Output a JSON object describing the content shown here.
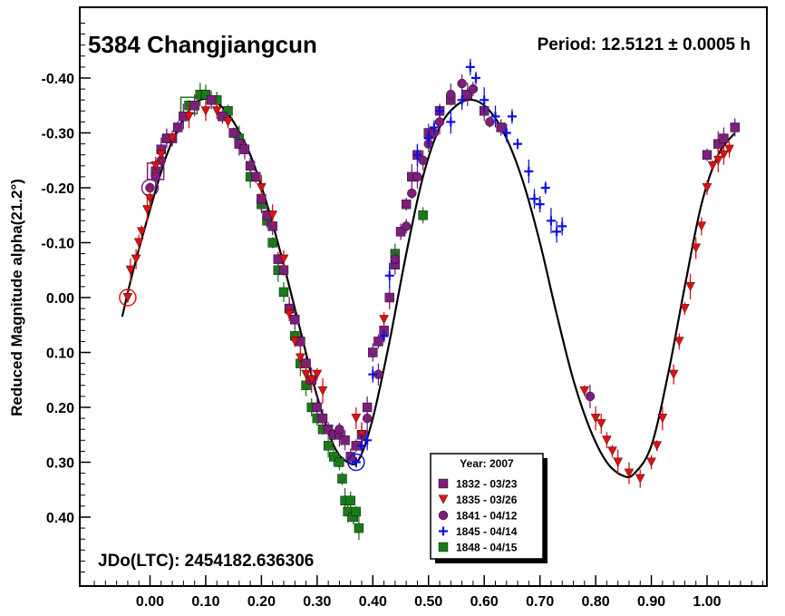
{
  "chart_data": {
    "type": "scatter",
    "title": "5384 Changjiangcun",
    "period_label": "Period: 12.5121 ± 0.0005 h",
    "epoch_label": "JDo(LTC): 2454182.636306",
    "ylabel": "Reduced Magnitude alpha(21.2°)",
    "xlabel": "",
    "xlim": [
      -0.12,
      1.1
    ],
    "ylim": [
      0.52,
      -0.51
    ],
    "y_inverted": true,
    "x_ticks": [
      0.0,
      0.1,
      0.2,
      0.3,
      0.4,
      0.5,
      0.6,
      0.7,
      0.8,
      0.9,
      1.0
    ],
    "x_tick_labels": [
      "0.00",
      "0.10",
      "0.20",
      "0.30",
      "0.40",
      "0.50",
      "0.60",
      "0.70",
      "0.80",
      "0.90",
      "1.00"
    ],
    "y_ticks": [
      -0.4,
      -0.3,
      -0.2,
      -0.1,
      0.0,
      0.1,
      0.2,
      0.3,
      0.4
    ],
    "y_tick_labels": [
      "-0.40",
      "-0.30",
      "-0.20",
      "-0.10",
      "0.00",
      "0.10",
      "0.20",
      "0.30",
      "0.40"
    ],
    "grid": false,
    "legend": {
      "title": "Year: 2007",
      "placement": "bottom-center",
      "entries": [
        {
          "name": "1832 - 03/23",
          "color": "#7b1f7b",
          "marker": "square"
        },
        {
          "name": "1835 - 03/26",
          "color": "#e01010",
          "marker": "triangle-down"
        },
        {
          "name": "1841 - 04/12",
          "color": "#7b1f7b",
          "marker": "circle"
        },
        {
          "name": "1845 - 04/14",
          "color": "#1010e0",
          "marker": "plus"
        },
        {
          "name": "1848 - 04/15",
          "color": "#1a7a1a",
          "marker": "square"
        }
      ]
    },
    "fit_curve": {
      "color": "#000000",
      "points": [
        [
          -0.05,
          0.035
        ],
        [
          -0.03,
          -0.05
        ],
        [
          0.0,
          -0.16
        ],
        [
          0.03,
          -0.26
        ],
        [
          0.06,
          -0.325
        ],
        [
          0.09,
          -0.36
        ],
        [
          0.12,
          -0.355
        ],
        [
          0.15,
          -0.32
        ],
        [
          0.18,
          -0.26
        ],
        [
          0.21,
          -0.17
        ],
        [
          0.24,
          -0.06
        ],
        [
          0.27,
          0.06
        ],
        [
          0.3,
          0.18
        ],
        [
          0.33,
          0.27
        ],
        [
          0.355,
          0.3
        ],
        [
          0.375,
          0.295
        ],
        [
          0.4,
          0.22
        ],
        [
          0.43,
          0.08
        ],
        [
          0.46,
          -0.08
        ],
        [
          0.49,
          -0.22
        ],
        [
          0.52,
          -0.31
        ],
        [
          0.55,
          -0.35
        ],
        [
          0.58,
          -0.36
        ],
        [
          0.61,
          -0.34
        ],
        [
          0.64,
          -0.29
        ],
        [
          0.67,
          -0.21
        ],
        [
          0.7,
          -0.1
        ],
        [
          0.73,
          0.03
        ],
        [
          0.76,
          0.15
        ],
        [
          0.79,
          0.24
        ],
        [
          0.82,
          0.3
        ],
        [
          0.85,
          0.325
        ],
        [
          0.87,
          0.32
        ],
        [
          0.9,
          0.27
        ],
        [
          0.93,
          0.14
        ],
        [
          0.96,
          -0.02
        ],
        [
          0.99,
          -0.17
        ],
        [
          1.02,
          -0.26
        ],
        [
          1.05,
          -0.3
        ]
      ]
    },
    "series": [
      {
        "name": "1832 - 03/23",
        "points": [
          [
            0.01,
            -0.23
          ],
          [
            0.02,
            -0.27
          ],
          [
            0.03,
            -0.29
          ],
          [
            0.04,
            -0.29
          ],
          [
            0.05,
            -0.31
          ],
          [
            0.06,
            -0.33
          ],
          [
            0.08,
            -0.35
          ],
          [
            0.11,
            -0.36
          ],
          [
            0.13,
            -0.33
          ],
          [
            0.15,
            -0.3
          ],
          [
            0.16,
            -0.28
          ],
          [
            0.17,
            -0.27
          ],
          [
            0.18,
            -0.24
          ],
          [
            0.19,
            -0.22
          ],
          [
            0.2,
            -0.18
          ],
          [
            0.21,
            -0.15
          ],
          [
            0.22,
            -0.13
          ],
          [
            0.23,
            -0.07
          ],
          [
            0.24,
            -0.05
          ],
          [
            0.25,
            0.02
          ],
          [
            0.26,
            0.04
          ],
          [
            0.27,
            0.08
          ],
          [
            0.28,
            0.12
          ],
          [
            0.29,
            0.15
          ],
          [
            0.3,
            0.2
          ],
          [
            0.31,
            0.22
          ],
          [
            0.32,
            0.24
          ],
          [
            0.33,
            0.25
          ],
          [
            0.34,
            0.25
          ],
          [
            0.35,
            0.26
          ],
          [
            0.36,
            0.29
          ],
          [
            0.37,
            0.27
          ],
          [
            0.38,
            0.25
          ],
          [
            0.39,
            0.2
          ],
          [
            0.4,
            0.1
          ],
          [
            0.41,
            0.08
          ],
          [
            0.42,
            0.06
          ],
          [
            0.43,
            0.0
          ],
          [
            0.44,
            -0.06
          ],
          [
            0.45,
            -0.12
          ],
          [
            0.46,
            -0.17
          ],
          [
            0.47,
            -0.22
          ],
          [
            0.48,
            -0.26
          ],
          [
            0.5,
            -0.3
          ],
          [
            0.52,
            -0.34
          ],
          [
            0.54,
            -0.36
          ],
          [
            0.57,
            -0.37
          ],
          [
            0.6,
            -0.34
          ],
          [
            0.63,
            -0.31
          ],
          [
            1.0,
            -0.26
          ],
          [
            1.02,
            -0.28
          ],
          [
            1.03,
            -0.29
          ],
          [
            1.05,
            -0.31
          ]
        ]
      },
      {
        "name": "1835 - 03/26",
        "points": [
          [
            -0.04,
            0.0
          ],
          [
            -0.035,
            -0.05
          ],
          [
            -0.025,
            -0.07
          ],
          [
            -0.02,
            -0.1
          ],
          [
            -0.015,
            -0.12
          ],
          [
            -0.005,
            -0.16
          ],
          [
            0.0,
            -0.18
          ],
          [
            0.01,
            -0.24
          ],
          [
            0.02,
            -0.26
          ],
          [
            0.04,
            -0.29
          ],
          [
            0.07,
            -0.33
          ],
          [
            0.1,
            -0.34
          ],
          [
            0.12,
            -0.34
          ],
          [
            0.14,
            -0.32
          ],
          [
            0.2,
            -0.2
          ],
          [
            0.22,
            -0.15
          ],
          [
            0.24,
            -0.07
          ],
          [
            0.25,
            0.03
          ],
          [
            0.26,
            0.08
          ],
          [
            0.27,
            0.11
          ],
          [
            0.28,
            0.14
          ],
          [
            0.29,
            0.15
          ],
          [
            0.3,
            0.14
          ],
          [
            0.31,
            0.17
          ],
          [
            0.37,
            0.22
          ],
          [
            0.38,
            0.25
          ],
          [
            0.42,
            0.04
          ],
          [
            0.78,
            0.17
          ],
          [
            0.8,
            0.22
          ],
          [
            0.81,
            0.23
          ],
          [
            0.82,
            0.26
          ],
          [
            0.83,
            0.28
          ],
          [
            0.84,
            0.3
          ],
          [
            0.86,
            0.32
          ],
          [
            0.88,
            0.33
          ],
          [
            0.9,
            0.3
          ],
          [
            0.91,
            0.27
          ],
          [
            0.92,
            0.22
          ],
          [
            0.94,
            0.14
          ],
          [
            0.95,
            0.08
          ],
          [
            0.96,
            0.02
          ],
          [
            0.97,
            -0.02
          ],
          [
            0.98,
            -0.09
          ],
          [
            0.99,
            -0.13
          ],
          [
            1.0,
            -0.2
          ],
          [
            1.01,
            -0.24
          ],
          [
            1.02,
            -0.25
          ],
          [
            1.03,
            -0.26
          ],
          [
            1.04,
            -0.27
          ]
        ]
      },
      {
        "name": "1841 - 04/12",
        "points": [
          [
            0.0,
            -0.2
          ],
          [
            0.01,
            -0.22
          ],
          [
            0.02,
            -0.25
          ],
          [
            0.03,
            -0.29
          ],
          [
            0.34,
            0.24
          ],
          [
            0.39,
            0.22
          ],
          [
            0.41,
            0.14
          ],
          [
            0.44,
            -0.07
          ],
          [
            0.46,
            -0.13
          ],
          [
            0.47,
            -0.19
          ],
          [
            0.48,
            -0.22
          ],
          [
            0.49,
            -0.25
          ],
          [
            0.5,
            -0.28
          ],
          [
            0.51,
            -0.3
          ],
          [
            0.52,
            -0.32
          ],
          [
            0.54,
            -0.37
          ],
          [
            0.56,
            -0.39
          ],
          [
            0.58,
            -0.38
          ],
          [
            0.61,
            -0.32
          ],
          [
            0.79,
            0.18
          ]
        ]
      },
      {
        "name": "1845 - 04/14",
        "points": [
          [
            0.37,
            0.3
          ],
          [
            0.38,
            0.27
          ],
          [
            0.39,
            0.26
          ],
          [
            0.4,
            0.14
          ],
          [
            0.42,
            0.07
          ],
          [
            0.43,
            -0.04
          ],
          [
            0.48,
            -0.26
          ],
          [
            0.5,
            -0.29
          ],
          [
            0.51,
            -0.31
          ],
          [
            0.52,
            -0.34
          ],
          [
            0.54,
            -0.32
          ],
          [
            0.56,
            -0.36
          ],
          [
            0.575,
            -0.42
          ],
          [
            0.585,
            -0.4
          ],
          [
            0.6,
            -0.36
          ],
          [
            0.62,
            -0.33
          ],
          [
            0.64,
            -0.3
          ],
          [
            0.65,
            -0.33
          ],
          [
            0.66,
            -0.28
          ],
          [
            0.68,
            -0.23
          ],
          [
            0.69,
            -0.18
          ],
          [
            0.7,
            -0.17
          ],
          [
            0.71,
            -0.2
          ],
          [
            0.72,
            -0.14
          ],
          [
            0.73,
            -0.12
          ],
          [
            0.74,
            -0.13
          ]
        ]
      },
      {
        "name": "1848 - 04/15",
        "points": [
          [
            0.07,
            -0.35
          ],
          [
            0.09,
            -0.37
          ],
          [
            0.1,
            -0.37
          ],
          [
            0.12,
            -0.36
          ],
          [
            0.14,
            -0.34
          ],
          [
            0.16,
            -0.29
          ],
          [
            0.18,
            -0.22
          ],
          [
            0.2,
            -0.17
          ],
          [
            0.21,
            -0.14
          ],
          [
            0.22,
            -0.1
          ],
          [
            0.23,
            -0.05
          ],
          [
            0.24,
            -0.01
          ],
          [
            0.25,
            0.02
          ],
          [
            0.26,
            0.07
          ],
          [
            0.27,
            0.12
          ],
          [
            0.28,
            0.16
          ],
          [
            0.29,
            0.2
          ],
          [
            0.3,
            0.22
          ],
          [
            0.31,
            0.24
          ],
          [
            0.32,
            0.27
          ],
          [
            0.33,
            0.29
          ],
          [
            0.34,
            0.3
          ],
          [
            0.345,
            0.33
          ],
          [
            0.35,
            0.37
          ],
          [
            0.355,
            0.39
          ],
          [
            0.36,
            0.37
          ],
          [
            0.365,
            0.4
          ],
          [
            0.37,
            0.39
          ],
          [
            0.375,
            0.42
          ],
          [
            0.44,
            -0.08
          ],
          [
            0.49,
            -0.15
          ]
        ]
      }
    ]
  }
}
